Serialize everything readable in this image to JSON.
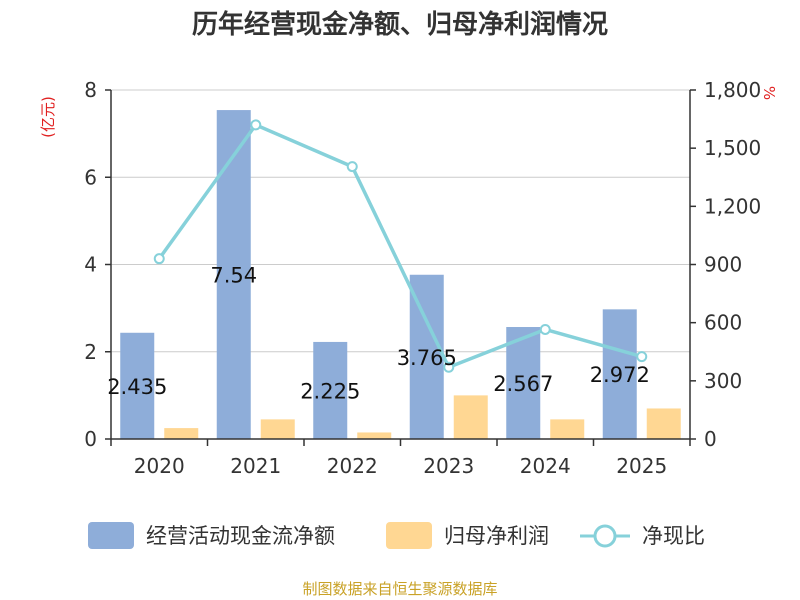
{
  "chart_data": {
    "type": "bar",
    "title": "历年经营现金净额、归母净利润情况",
    "categories": [
      "2020",
      "2021",
      "2022",
      "2023",
      "2024",
      "2025"
    ],
    "series": [
      {
        "name": "经营活动现金流净额",
        "kind": "bar",
        "axis": "left",
        "color": "#8eadd9",
        "values": [
          2.435,
          7.54,
          2.225,
          3.765,
          2.567,
          2.972
        ],
        "labels": [
          "2.435",
          "7.54",
          "2.225",
          "3.765",
          "2.567",
          "2.972"
        ]
      },
      {
        "name": "归母净利润",
        "kind": "bar",
        "axis": "left",
        "color": "#ffd793",
        "values": [
          0.25,
          0.45,
          0.15,
          1.0,
          0.45,
          0.7
        ]
      },
      {
        "name": "净现比",
        "kind": "line",
        "axis": "right",
        "color": "#86d1da",
        "values": [
          930,
          1620,
          1405,
          370,
          565,
          425
        ]
      }
    ],
    "y_left": {
      "unit": "(亿元)",
      "min": 0,
      "max": 8,
      "ticks": [
        "0",
        "2",
        "4",
        "6",
        "8"
      ],
      "unit_color": "#e02020"
    },
    "y_right": {
      "unit": "%",
      "min": 0,
      "max": 1800,
      "ticks": [
        "0",
        "300",
        "600",
        "900",
        "1,200",
        "1,500",
        "1,800"
      ],
      "unit_color": "#e02020"
    },
    "grid": true,
    "legend_position": "bottom"
  },
  "source": {
    "text": "制图数据来自恒生聚源数据库",
    "color": "#c9a227"
  }
}
